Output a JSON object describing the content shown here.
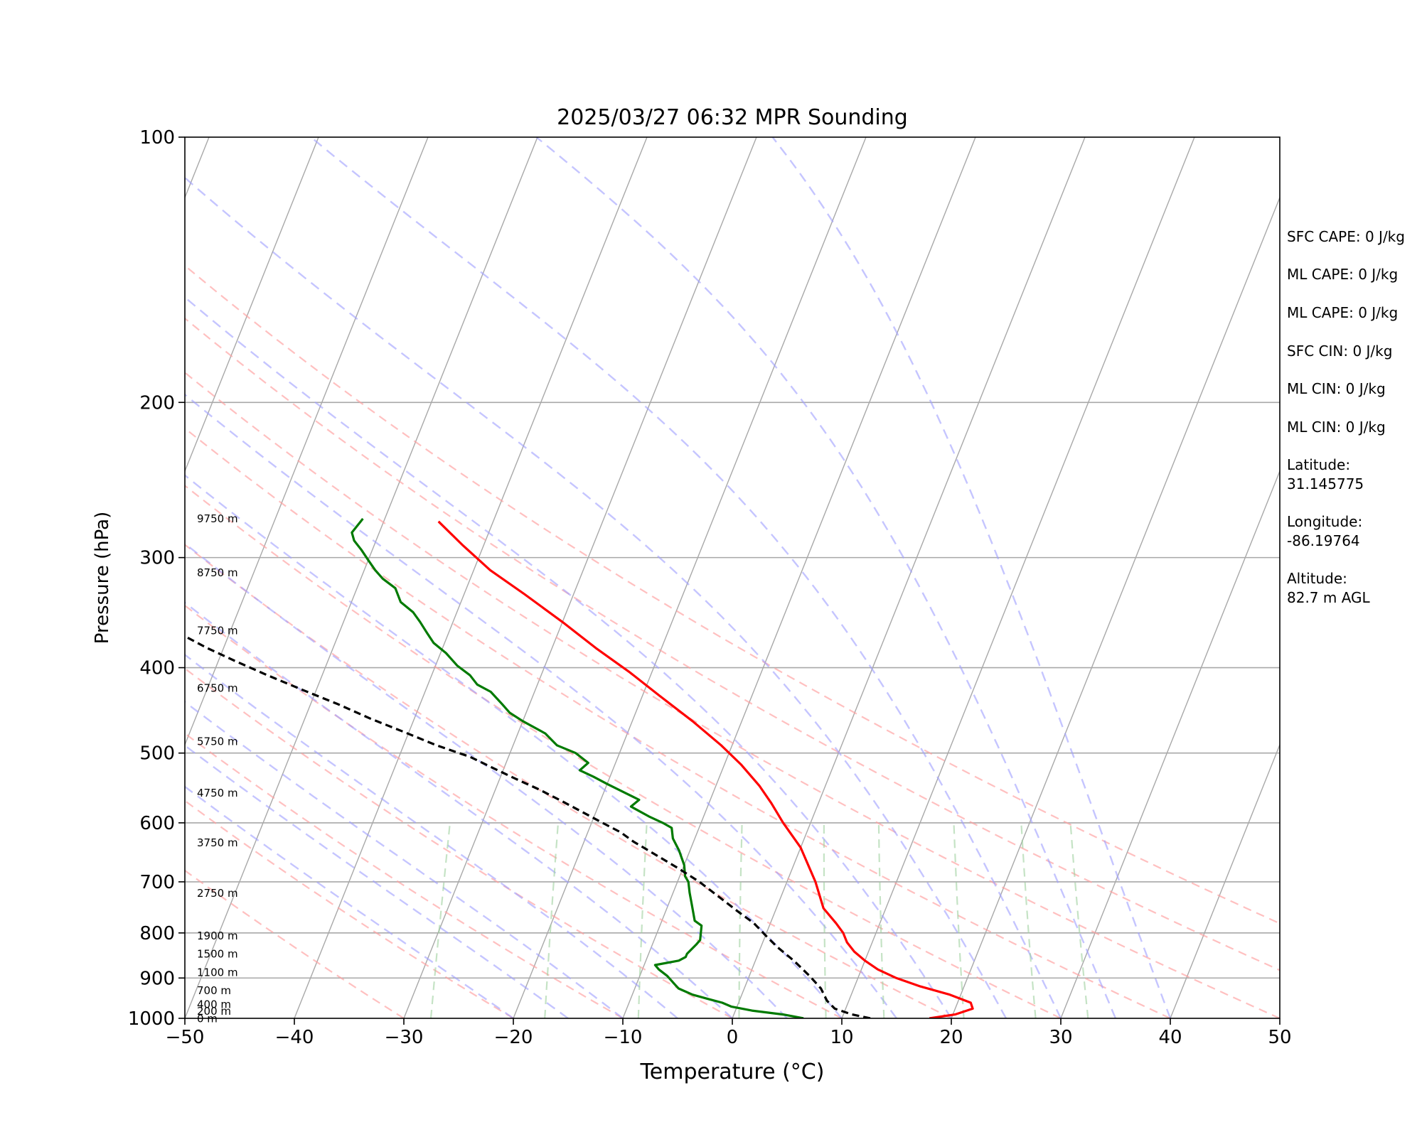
{
  "chart_data": {
    "type": "line",
    "subtype": "skew-T log-P sounding",
    "title": "2025/03/27 06:32 MPR Sounding",
    "xlabel": "Temperature (°C)",
    "ylabel": "Pressure (hPa)",
    "xlim": [
      -50,
      50
    ],
    "ylim": [
      1000,
      100
    ],
    "y_scale": "log",
    "x_ticks": [
      "−50",
      "−40",
      "−30",
      "−20",
      "−10",
      "0",
      "10",
      "20",
      "30",
      "40",
      "50"
    ],
    "y_ticks": [
      "100",
      "200",
      "300",
      "400",
      "500",
      "600",
      "700",
      "800",
      "900",
      "1000"
    ],
    "grid": "horizontal at labelled pressures",
    "background_lines": {
      "isotherms": "gray solid skewed",
      "dry_adiabats": "red dashed",
      "moist_adiabats": "blue dashed",
      "mixing_ratio": "green dashed"
    },
    "height_labels": [
      {
        "text": "9750 m",
        "p": 271
      },
      {
        "text": "8750 m",
        "p": 312
      },
      {
        "text": "7750 m",
        "p": 363
      },
      {
        "text": "6750 m",
        "p": 422
      },
      {
        "text": "5750 m",
        "p": 485
      },
      {
        "text": "4750 m",
        "p": 555
      },
      {
        "text": "3750 m",
        "p": 632
      },
      {
        "text": "2750 m",
        "p": 721
      },
      {
        "text": "1900 m",
        "p": 806
      },
      {
        "text": "1500 m",
        "p": 845
      },
      {
        "text": "1100 m",
        "p": 887
      },
      {
        "text": "700 m",
        "p": 930
      },
      {
        "text": "400 m",
        "p": 964
      },
      {
        "text": "200 m",
        "p": 982
      },
      {
        "text": "0 m",
        "p": 1001
      }
    ],
    "series": [
      {
        "role": "temperature",
        "color": "#ff0000",
        "points": [
          [
            18,
            1000
          ],
          [
            20.2,
            990
          ],
          [
            21.6,
            975
          ],
          [
            21.2,
            960
          ],
          [
            19,
            940
          ],
          [
            16,
            920
          ],
          [
            13.5,
            900
          ],
          [
            11.5,
            880
          ],
          [
            10,
            860
          ],
          [
            8.7,
            840
          ],
          [
            7.7,
            820
          ],
          [
            7,
            800
          ],
          [
            6,
            780
          ],
          [
            4.3,
            750
          ],
          [
            2.6,
            700
          ],
          [
            0,
            640
          ],
          [
            -2.5,
            600
          ],
          [
            -4.3,
            570
          ],
          [
            -6,
            545
          ],
          [
            -8.5,
            515
          ],
          [
            -11,
            490
          ],
          [
            -14.5,
            460
          ],
          [
            -18.5,
            430
          ],
          [
            -22,
            405
          ],
          [
            -26,
            380
          ],
          [
            -30,
            355
          ],
          [
            -34.5,
            330
          ],
          [
            -38.5,
            310
          ],
          [
            -42,
            290
          ],
          [
            -45,
            273
          ]
        ]
      },
      {
        "role": "dewpoint",
        "color": "#007a00",
        "points": [
          [
            6.5,
            1000
          ],
          [
            4.5,
            990
          ],
          [
            1.5,
            980
          ],
          [
            -0.5,
            970
          ],
          [
            -1.5,
            960
          ],
          [
            -3,
            950
          ],
          [
            -4.5,
            940
          ],
          [
            -6,
            925
          ],
          [
            -6.5,
            915
          ],
          [
            -7,
            905
          ],
          [
            -7.5,
            895
          ],
          [
            -8.5,
            880
          ],
          [
            -9,
            870
          ],
          [
            -7,
            860
          ],
          [
            -6.5,
            852
          ],
          [
            -6.5,
            845
          ],
          [
            -6,
            825
          ],
          [
            -5.8,
            815
          ],
          [
            -6,
            800
          ],
          [
            -6.2,
            785
          ],
          [
            -7,
            775
          ],
          [
            -7.8,
            745
          ],
          [
            -8.5,
            720
          ],
          [
            -9,
            700
          ],
          [
            -9.5,
            690
          ],
          [
            -10,
            670
          ],
          [
            -11,
            645
          ],
          [
            -12,
            625
          ],
          [
            -12.5,
            608
          ],
          [
            -13.5,
            600
          ],
          [
            -15,
            590
          ],
          [
            -17,
            575
          ],
          [
            -16.5,
            565
          ],
          [
            -18,
            555
          ],
          [
            -20,
            542
          ],
          [
            -21.5,
            532
          ],
          [
            -23,
            523
          ],
          [
            -22.5,
            513
          ],
          [
            -24,
            500
          ],
          [
            -26,
            490
          ],
          [
            -27.5,
            475
          ],
          [
            -30,
            460
          ],
          [
            -31.5,
            450
          ],
          [
            -32.5,
            440
          ],
          [
            -34,
            426
          ],
          [
            -35.5,
            418
          ],
          [
            -36.5,
            408
          ],
          [
            -38,
            398
          ],
          [
            -39.5,
            385
          ],
          [
            -41,
            375
          ],
          [
            -42,
            365
          ],
          [
            -43,
            355
          ],
          [
            -44,
            346
          ],
          [
            -45.5,
            337
          ],
          [
            -46.5,
            325
          ],
          [
            -48,
            317
          ],
          [
            -49,
            310
          ],
          [
            -50,
            302
          ],
          [
            -51,
            294
          ],
          [
            -52,
            287
          ],
          [
            -52.5,
            281
          ],
          [
            -52,
            271
          ]
        ]
      },
      {
        "role": "parcel",
        "color": "#000000",
        "dashed": true,
        "points": [
          [
            12.6,
            1000
          ],
          [
            10.8,
            990
          ],
          [
            9,
            975
          ],
          [
            8,
            955
          ],
          [
            7,
            925
          ],
          [
            5.5,
            895
          ],
          [
            3.5,
            860
          ],
          [
            1.5,
            830
          ],
          [
            0,
            805
          ],
          [
            -1.5,
            780
          ],
          [
            -3.5,
            755
          ],
          [
            -5.5,
            730
          ],
          [
            -8,
            700
          ],
          [
            -10.5,
            675
          ],
          [
            -13,
            652
          ],
          [
            -15.5,
            630
          ],
          [
            -17,
            615
          ],
          [
            -19,
            600
          ],
          [
            -21,
            585
          ],
          [
            -23.5,
            567
          ],
          [
            -26,
            550
          ],
          [
            -28.5,
            535
          ],
          [
            -31,
            520
          ],
          [
            -33.5,
            505
          ],
          [
            -37,
            490
          ],
          [
            -40.5,
            473
          ],
          [
            -44,
            457
          ],
          [
            -47.5,
            440
          ],
          [
            -51,
            425
          ],
          [
            -55,
            408
          ],
          [
            -58.5,
            393
          ],
          [
            -61.5,
            380
          ],
          [
            -64.5,
            366
          ],
          [
            -67.5,
            353
          ],
          [
            -70.5,
            340
          ],
          [
            -73.5,
            327
          ],
          [
            -77,
            314
          ],
          [
            -80.5,
            300
          ],
          [
            -84,
            287
          ],
          [
            -87.5,
            273
          ]
        ]
      }
    ]
  },
  "info_panel": {
    "sfc_cape": "SFC CAPE: 0 J/kg",
    "ml_cape_1": "ML CAPE: 0 J/kg",
    "ml_cape_2": "ML CAPE: 0 J/kg",
    "sfc_cin": "SFC CIN: 0 J/kg",
    "ml_cin_1": "ML CIN: 0 J/kg",
    "ml_cin_2": "ML CIN: 0 J/kg",
    "latitude_label": "Latitude:",
    "latitude_value": "31.145775",
    "longitude_label": "Longitude:",
    "longitude_value": "-86.19764",
    "altitude_label": "Altitude:",
    "altitude_value": "82.7 m AGL"
  }
}
